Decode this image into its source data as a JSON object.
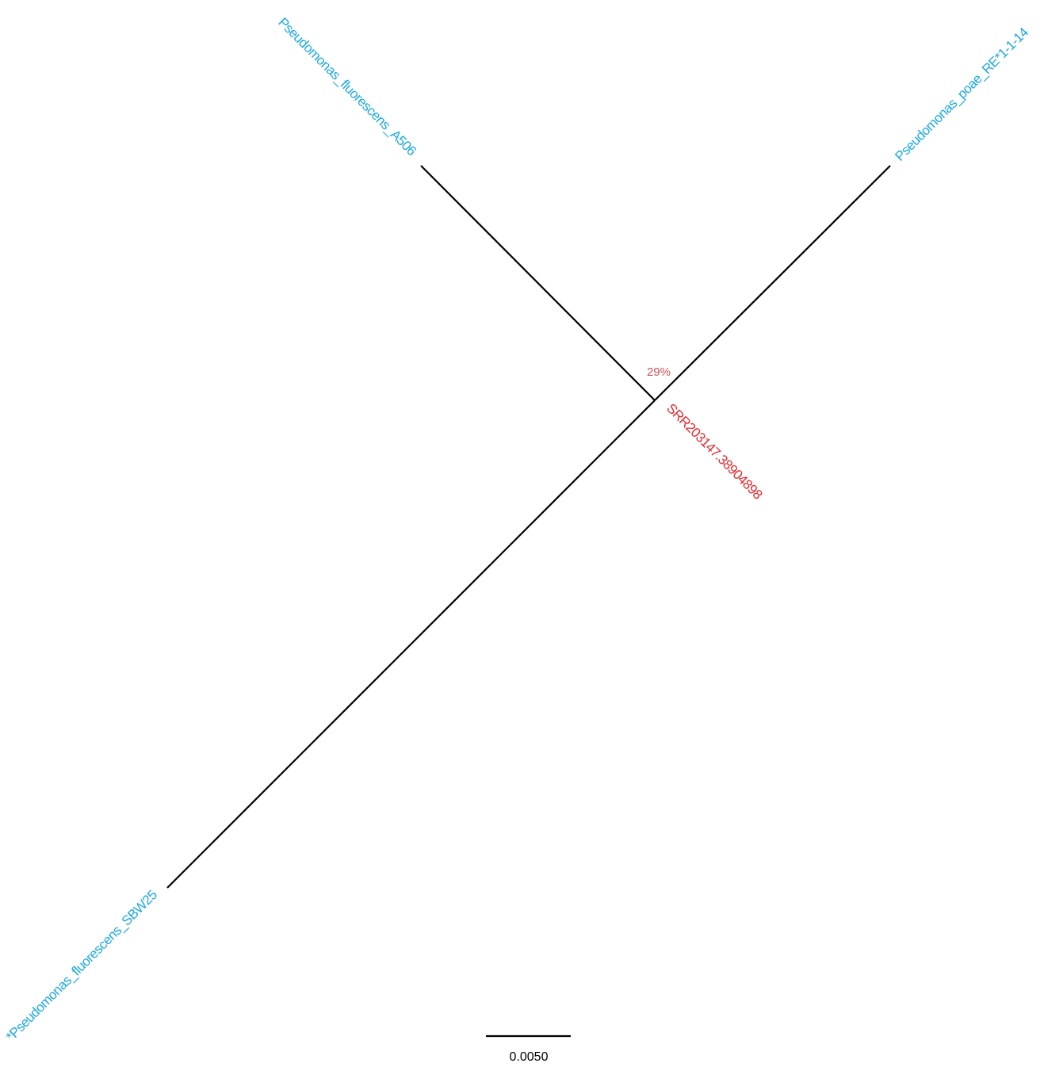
{
  "tree": {
    "leaves": [
      {
        "id": "a506",
        "label": "Pseudomonas_fluorescens_A506",
        "color": "#1ba8e0"
      },
      {
        "id": "poae",
        "label": "Pseudomonas_poae_RE*1-1-14",
        "color": "#1ba8e0"
      },
      {
        "id": "sbw25",
        "label": "*Pseudomonas_fluorescens_SBW25",
        "color": "#1ba8e0"
      },
      {
        "id": "query",
        "label": "SRR203147.3890489​8",
        "color": "#e8262d"
      }
    ],
    "support": {
      "label": "29%",
      "color": "#d0525a"
    },
    "scale_bar": {
      "label": "0.0050"
    },
    "branch_color": "#000000"
  }
}
